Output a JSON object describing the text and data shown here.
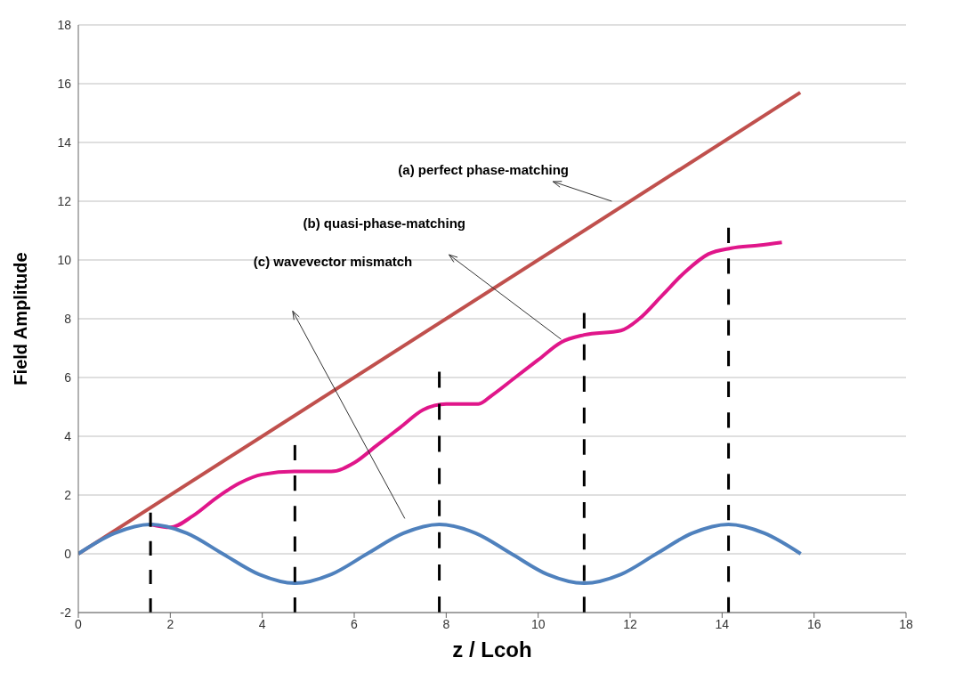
{
  "chart_data": {
    "type": "line",
    "xlabel": "z / Lcoh",
    "ylabel": "Field Amplitude",
    "xlim": [
      0,
      18
    ],
    "xticks": [
      0,
      2,
      4,
      6,
      8,
      10,
      12,
      14,
      16,
      18
    ],
    "ylim": [
      -2,
      18
    ],
    "yticks": [
      -2,
      0,
      2,
      4,
      6,
      8,
      10,
      12,
      14,
      16,
      18
    ],
    "grid": "y",
    "line_style": "solid",
    "marker": "none",
    "series": [
      {
        "color": "#c0504d",
        "x": [
          0,
          15.7
        ],
        "values": [
          0,
          15.7
        ]
      },
      {
        "color": "#e0168a",
        "x": [
          1.57,
          2,
          2.5,
          3,
          3.5,
          4,
          4.7,
          5.5,
          6,
          6.5,
          7,
          7.5,
          8,
          8.7,
          9,
          9.5,
          10,
          10.5,
          11,
          11.8,
          12.2,
          12.7,
          13.2,
          13.7,
          14.2,
          14.8,
          15.3
        ],
        "values": [
          1.0,
          0.9,
          1.3,
          1.9,
          2.4,
          2.7,
          2.8,
          2.8,
          3.1,
          3.7,
          4.3,
          4.9,
          5.1,
          5.1,
          5.4,
          6.0,
          6.6,
          7.2,
          7.45,
          7.6,
          8.0,
          8.8,
          9.6,
          10.2,
          10.4,
          10.5,
          10.6
        ]
      },
      {
        "color": "#4f81bd",
        "x": [
          0,
          0.79,
          1.57,
          2.36,
          3.14,
          3.93,
          4.71,
          5.5,
          6.28,
          7.07,
          7.85,
          8.64,
          9.42,
          10.2,
          11.0,
          11.8,
          12.57,
          13.35,
          14.14,
          14.92,
          15.71
        ],
        "values": [
          0,
          0.7,
          1,
          0.7,
          0,
          -0.7,
          -1,
          -0.7,
          0,
          0.7,
          1,
          0.7,
          0,
          -0.7,
          -1,
          -0.7,
          0,
          0.7,
          1,
          0.7,
          0
        ]
      },
      {
        "color": "#000000",
        "line_style": "dashed",
        "x": [
          1.57,
          1.57
        ],
        "values": [
          -2,
          1.4
        ]
      },
      {
        "color": "#000000",
        "line_style": "dashed",
        "x": [
          4.71,
          4.71
        ],
        "values": [
          -2,
          3.7
        ]
      },
      {
        "color": "#000000",
        "line_style": "dashed",
        "x": [
          7.85,
          7.85
        ],
        "values": [
          -2,
          6.2
        ]
      },
      {
        "color": "#000000",
        "line_style": "dashed",
        "x": [
          11.0,
          11.0
        ],
        "values": [
          -2,
          8.2
        ]
      },
      {
        "color": "#000000",
        "line_style": "dashed",
        "x": [
          14.14,
          14.14
        ],
        "values": [
          -2,
          11.1
        ]
      }
    ],
    "annotations": [
      "(a) perfect phase-matching",
      "(b) quasi-phase-matching",
      "(c) wavevector mismatch"
    ]
  }
}
